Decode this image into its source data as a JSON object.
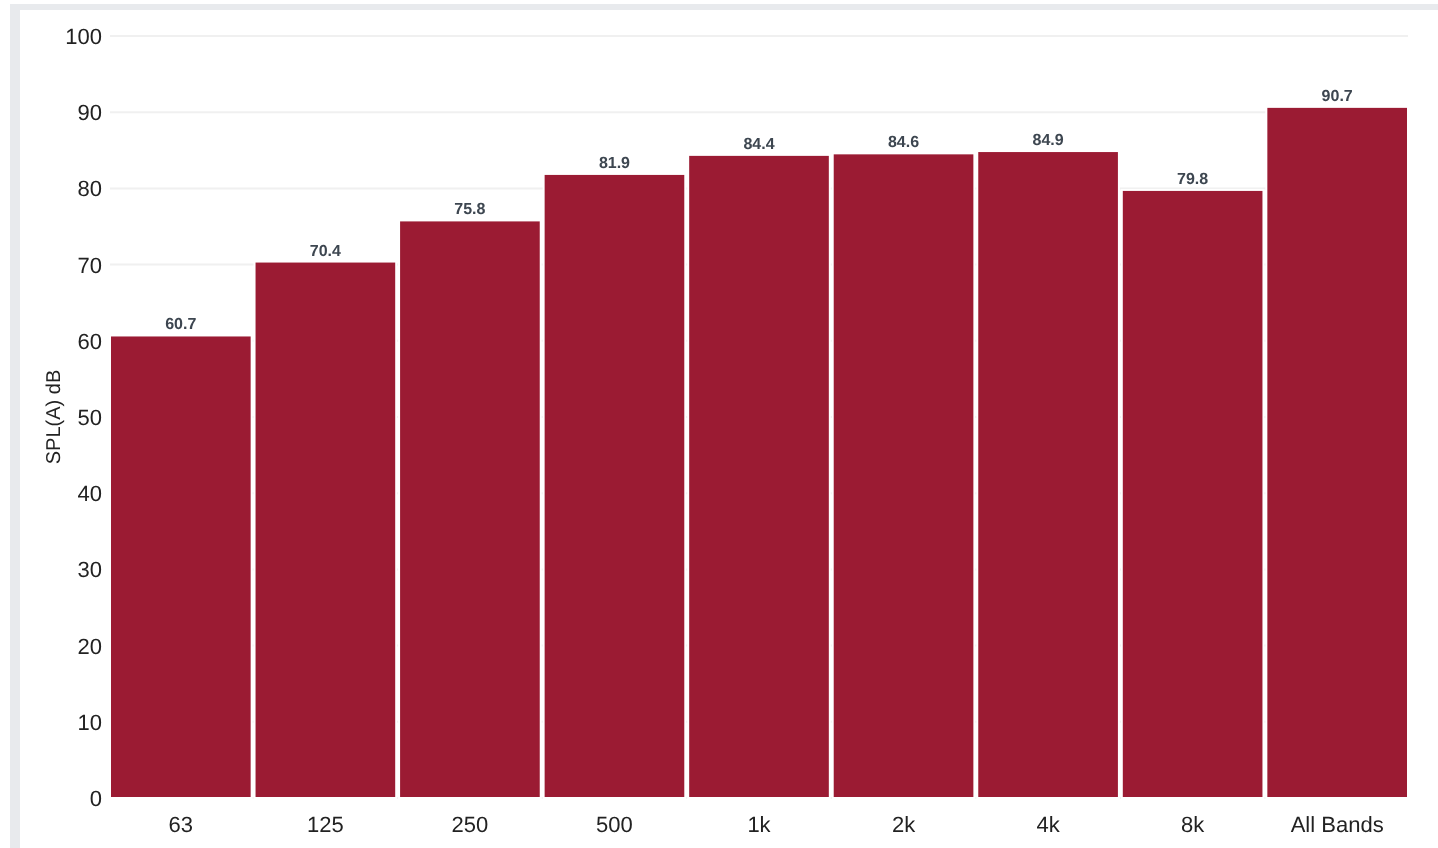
{
  "chart_data": {
    "type": "bar",
    "ylabel": "SPL(A) dB",
    "categories": [
      "63",
      "125",
      "250",
      "500",
      "1k",
      "2k",
      "4k",
      "8k",
      "All Bands"
    ],
    "values": [
      60.7,
      70.4,
      75.8,
      81.9,
      84.4,
      84.6,
      84.9,
      79.8,
      90.7
    ],
    "color": "#9b1b33",
    "ylim": [
      0,
      100
    ],
    "yticks": [
      0,
      10,
      20,
      30,
      40,
      50,
      60,
      70,
      80,
      90,
      100
    ],
    "grid": "y",
    "data_labels": true
  }
}
